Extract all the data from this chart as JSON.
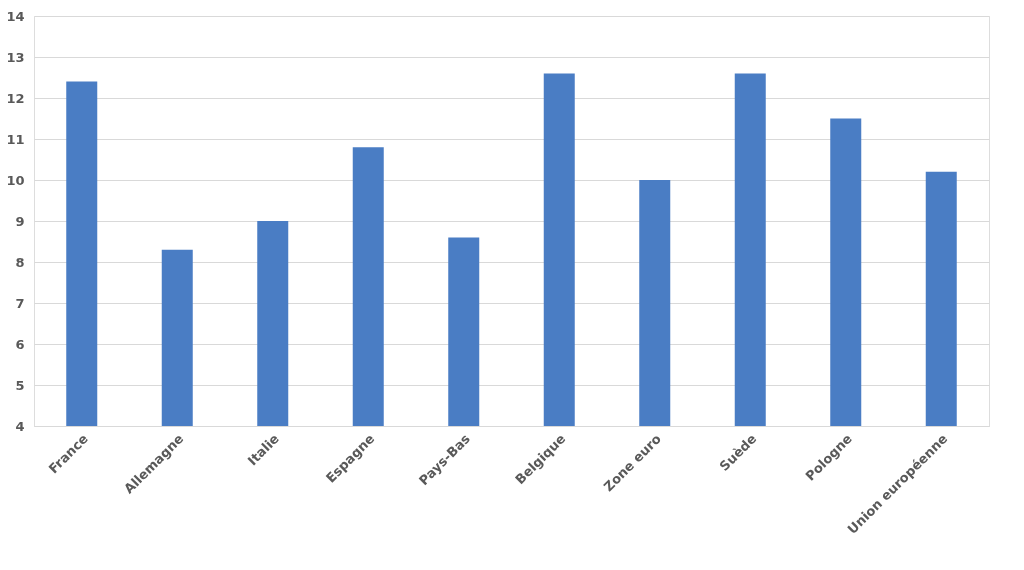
{
  "chart_data": {
    "type": "bar",
    "categories": [
      "France",
      "Allemagne",
      "Italie",
      "Espagne",
      "Pays-Bas",
      "Belgique",
      "Zone euro",
      "Suède",
      "Pologne",
      "Union européenne"
    ],
    "values": [
      12.4,
      8.3,
      9.0,
      10.8,
      8.6,
      12.6,
      10.0,
      12.6,
      11.5,
      10.2
    ],
    "color": "#4a7dc4",
    "ylim": [
      4,
      14
    ],
    "yticks": [
      4,
      5,
      6,
      7,
      8,
      9,
      10,
      11,
      12,
      13,
      14
    ],
    "grid": "y"
  }
}
